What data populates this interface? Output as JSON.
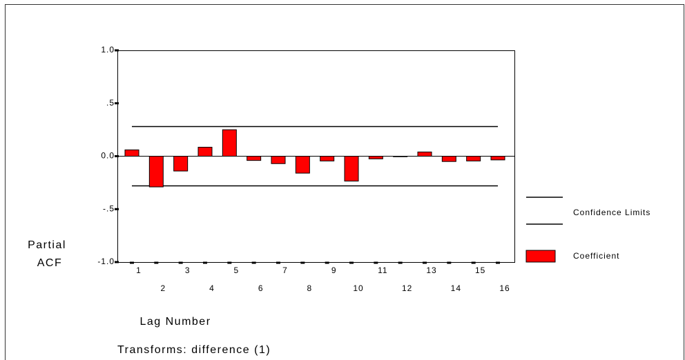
{
  "chart_data": {
    "type": "bar",
    "categories": [
      "1",
      "2",
      "3",
      "4",
      "5",
      "6",
      "7",
      "8",
      "9",
      "10",
      "11",
      "12",
      "13",
      "14",
      "15",
      "16"
    ],
    "series": [
      {
        "name": "Coefficient",
        "color": "#ff0000",
        "values": [
          0.06,
          -0.29,
          -0.14,
          0.085,
          0.25,
          -0.04,
          -0.07,
          -0.16,
          -0.045,
          -0.235,
          -0.025,
          -0.005,
          0.04,
          -0.05,
          -0.045,
          -0.035
        ]
      }
    ],
    "confidence_limits": {
      "name": "Confidence Limits",
      "color": "#000000",
      "values": [
        0.28,
        -0.28
      ]
    },
    "ylim": [
      -1,
      1
    ],
    "yticks": [
      {
        "value": -1,
        "label": "-1.0"
      },
      {
        "value": -0.5,
        "label": "-.5"
      },
      {
        "value": 0,
        "label": "0.0"
      },
      {
        "value": 0.5,
        "label": ".5"
      },
      {
        "value": 1,
        "label": "1.0"
      }
    ],
    "ylabel": [
      "Partial",
      "ACF"
    ],
    "xlabel": "Lag Number",
    "footnote": "Transforms: difference (1)"
  }
}
